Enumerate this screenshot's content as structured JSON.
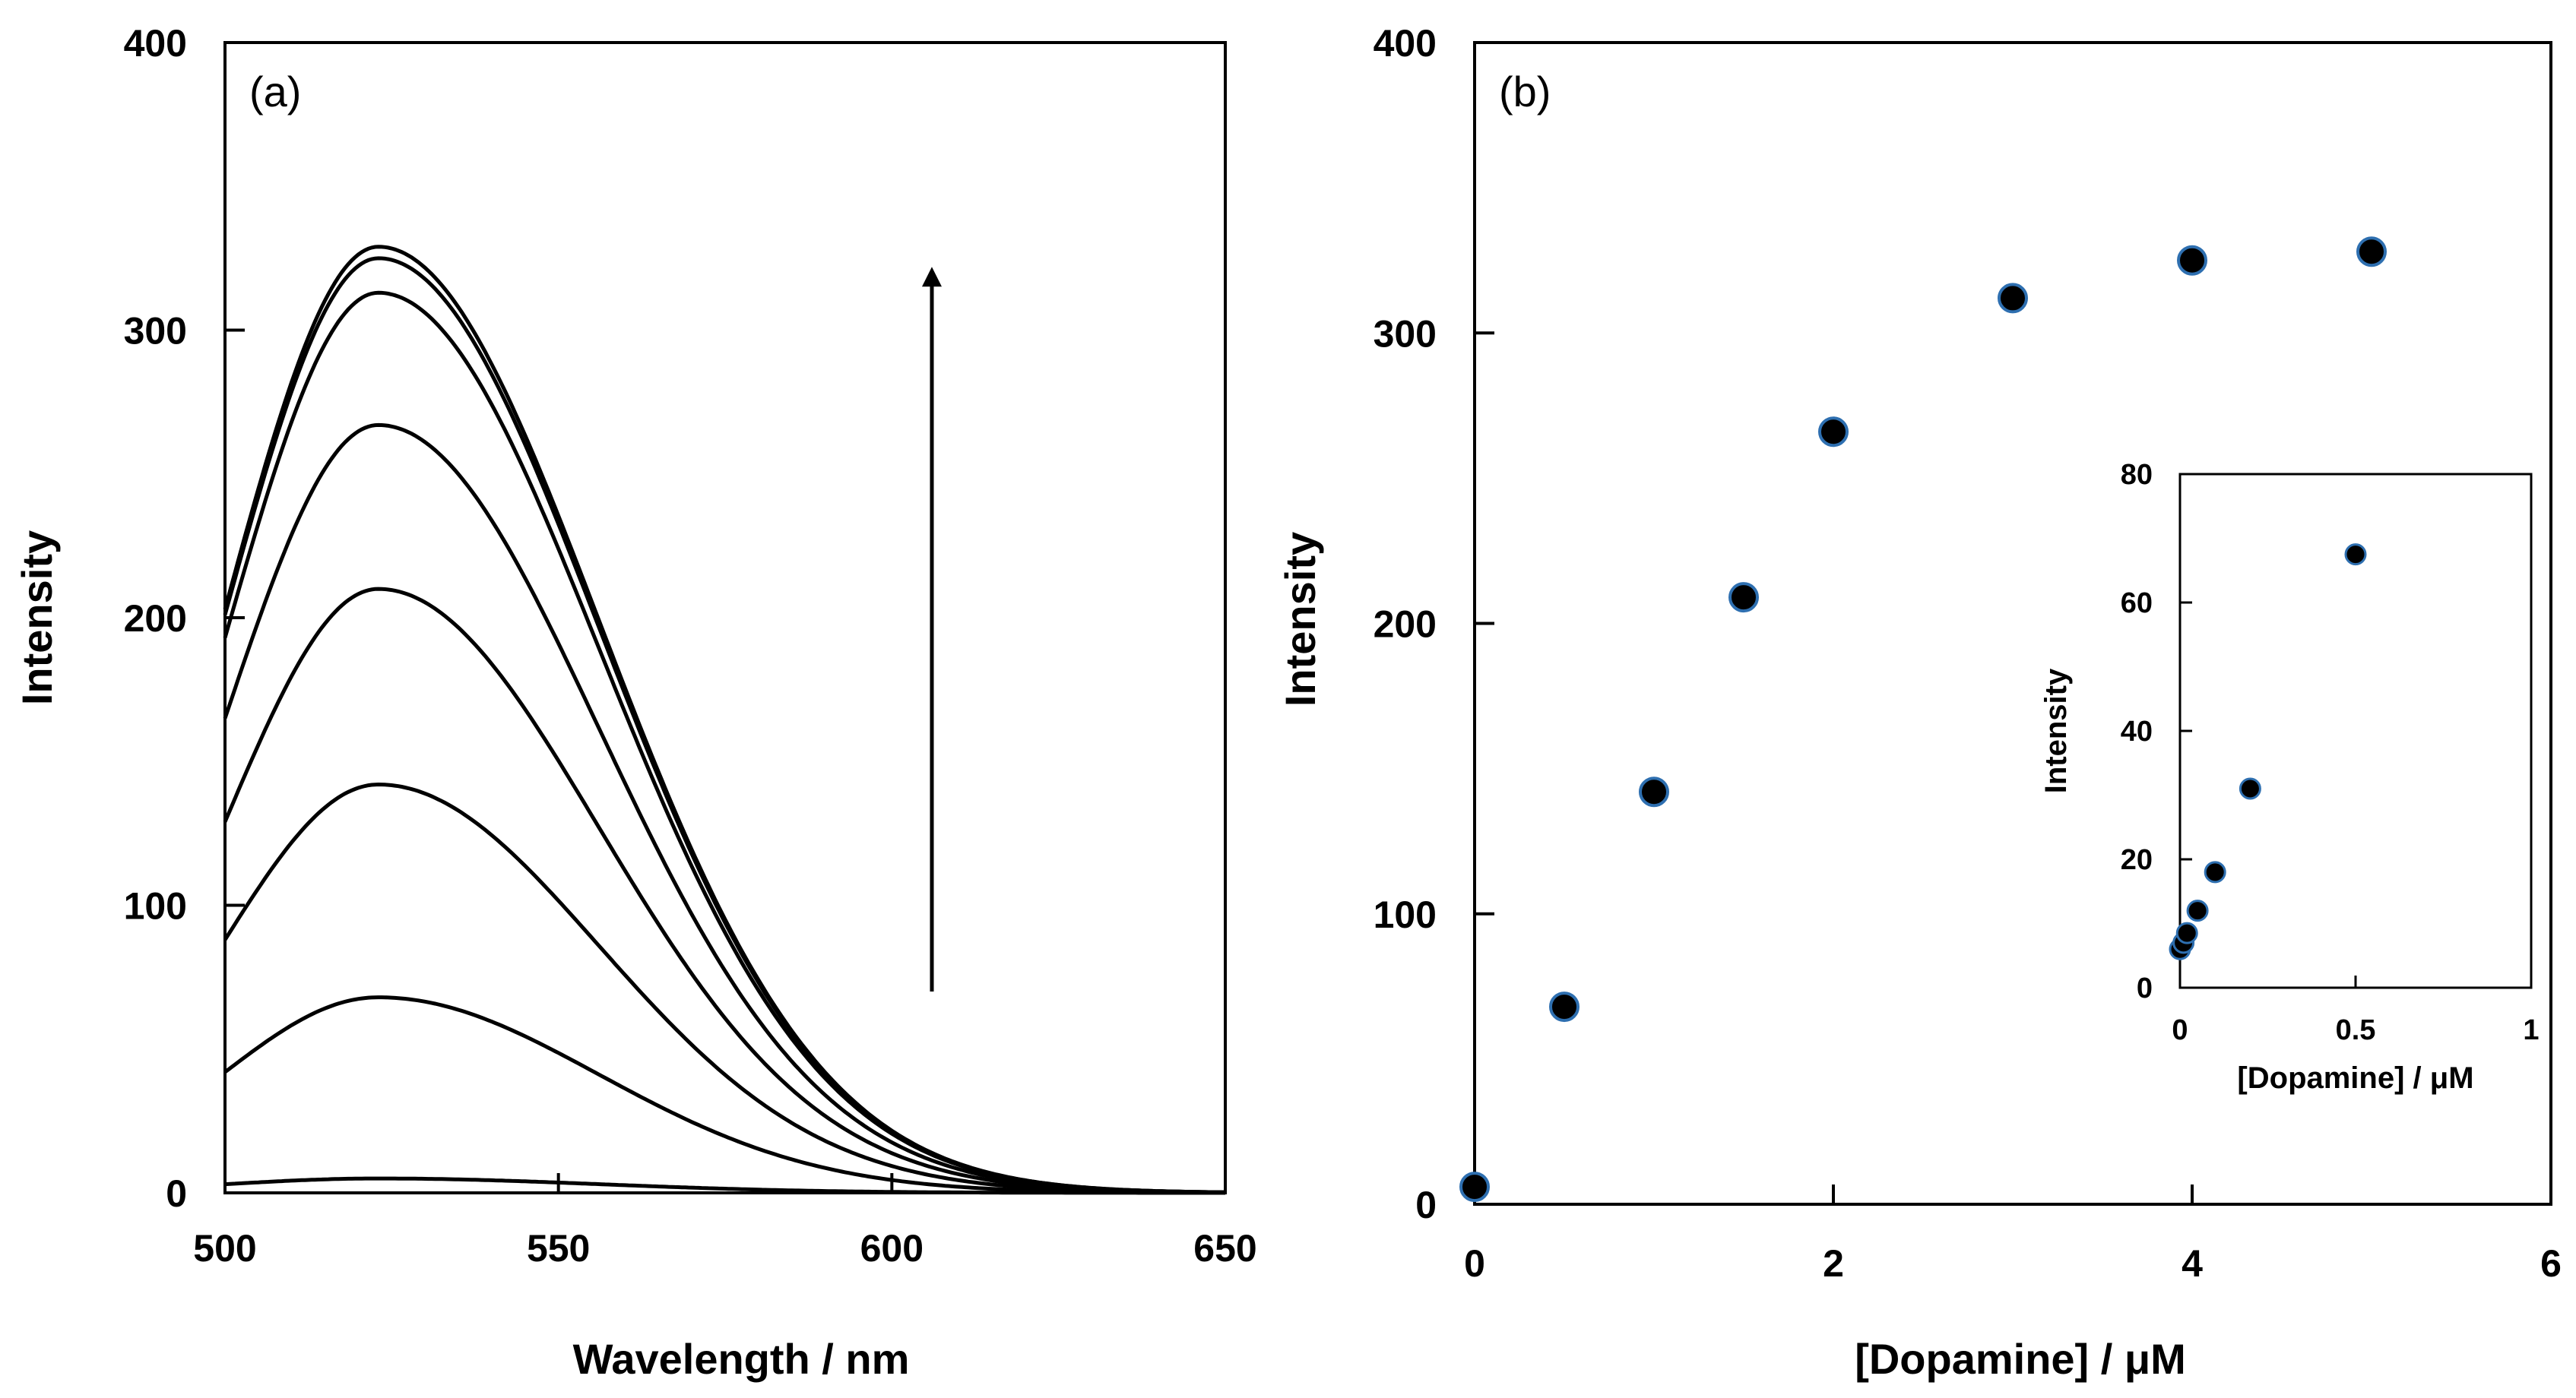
{
  "colors": {
    "line": "#000000",
    "marker_fill": "#000000",
    "marker_edge": "#2e6fb0",
    "background": "#ffffff"
  },
  "chart_data": [
    {
      "id": "a",
      "type": "line",
      "panel_label": "(a)",
      "xlabel": "Wavelength / nm",
      "ylabel": "Intensity",
      "xlim": [
        500,
        650
      ],
      "ylim": [
        0,
        400
      ],
      "xticks": [
        500,
        550,
        600,
        650
      ],
      "yticks": [
        0,
        100,
        200,
        300,
        400
      ],
      "grid": false,
      "legend": "none",
      "peak_wavelength": 523,
      "annotation": {
        "type": "arrow",
        "x": 606,
        "y_from": 70,
        "y_to": 322
      },
      "series": [
        {
          "peak": 5,
          "start": 3
        },
        {
          "peak": 68,
          "start": 42
        },
        {
          "peak": 142,
          "start": 88
        },
        {
          "peak": 210,
          "start": 129
        },
        {
          "peak": 267,
          "start": 165
        },
        {
          "peak": 313,
          "start": 193
        },
        {
          "peak": 325,
          "start": 201
        },
        {
          "peak": 329,
          "start": 203
        }
      ]
    },
    {
      "id": "b",
      "type": "scatter",
      "panel_label": "(b)",
      "xlabel": "[Dopamine] / μM",
      "ylabel": "Intensity",
      "xlim": [
        0,
        6
      ],
      "ylim": [
        0,
        400
      ],
      "xticks": [
        0,
        2,
        4,
        6
      ],
      "yticks": [
        0,
        100,
        200,
        300,
        400
      ],
      "grid": false,
      "legend": "none",
      "x": [
        0,
        0.5,
        1,
        1.5,
        2,
        3,
        4,
        5
      ],
      "y": [
        6,
        68,
        142,
        209,
        266,
        312,
        325,
        328
      ],
      "inset": {
        "type": "scatter",
        "xlabel": "[Dopamine]  / μM",
        "ylabel": "Intensity",
        "xlim": [
          0,
          1
        ],
        "ylim": [
          0,
          80
        ],
        "xticks": [
          0,
          0.5,
          1
        ],
        "yticks": [
          0,
          20,
          40,
          60,
          80
        ],
        "x": [
          0,
          0.01,
          0.02,
          0.05,
          0.1,
          0.2,
          0.5
        ],
        "y": [
          6,
          7,
          8.5,
          12,
          18,
          31,
          67.5
        ]
      }
    }
  ]
}
